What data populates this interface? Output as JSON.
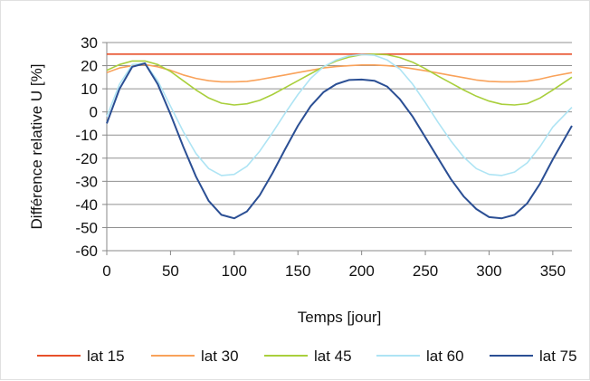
{
  "chart_data": {
    "type": "line",
    "title": "",
    "xlabel": "Temps [jour]",
    "ylabel": "Différence relative U [%]",
    "xlim": [
      0,
      365
    ],
    "ylim": [
      -60,
      30
    ],
    "xticks": [
      0,
      50,
      100,
      150,
      200,
      250,
      300,
      350
    ],
    "yticks": [
      30,
      20,
      10,
      0,
      -10,
      -20,
      -30,
      -40,
      -50,
      -60
    ],
    "grid": "horizontal",
    "legend_position": "bottom",
    "x": [
      0,
      10,
      20,
      30,
      40,
      50,
      60,
      70,
      80,
      90,
      100,
      110,
      120,
      130,
      140,
      150,
      160,
      170,
      180,
      190,
      200,
      210,
      220,
      230,
      240,
      250,
      260,
      270,
      280,
      290,
      300,
      310,
      320,
      330,
      340,
      350,
      365
    ],
    "series": [
      {
        "name": "lat 15",
        "color": "#e8502a",
        "values": [
          25,
          25,
          25,
          25,
          25,
          25,
          25,
          25,
          25,
          25,
          25,
          25,
          25,
          25,
          25,
          25,
          25,
          25,
          25,
          25,
          25,
          25,
          25,
          25,
          25,
          25,
          25,
          25,
          25,
          25,
          25,
          25,
          25,
          25,
          25,
          25,
          25
        ]
      },
      {
        "name": "lat 30",
        "color": "#f9a25a",
        "values": [
          17,
          19,
          20,
          20.5,
          19.5,
          18,
          16,
          14.5,
          13.5,
          13,
          13,
          13.2,
          14,
          15,
          16,
          17,
          18,
          19,
          19.6,
          20,
          20.3,
          20.3,
          20,
          19.5,
          18.7,
          17.8,
          16.8,
          15.8,
          14.8,
          13.8,
          13.2,
          13,
          13,
          13.3,
          14.2,
          15.5,
          17
        ]
      },
      {
        "name": "lat 45",
        "color": "#a9cf3c",
        "values": [
          18,
          20.5,
          22,
          22,
          20.5,
          17.5,
          13.5,
          9.5,
          6,
          3.8,
          3,
          3.5,
          5,
          7.5,
          10.5,
          13.5,
          16.5,
          19.5,
          22,
          23.7,
          24.7,
          25,
          24.7,
          23.5,
          21.5,
          18.7,
          15.5,
          12.5,
          9.5,
          6.8,
          4.7,
          3.3,
          3,
          3.6,
          6,
          9.5,
          15
        ]
      },
      {
        "name": "lat 60",
        "color": "#aee4f4",
        "values": [
          -2,
          12,
          20.5,
          21,
          13.5,
          2.5,
          -8.5,
          -18,
          -24.5,
          -27.5,
          -27,
          -23.5,
          -17,
          -9,
          -0.5,
          7.5,
          14.5,
          19.5,
          22.5,
          24.3,
          24.8,
          24.5,
          22.5,
          18.5,
          12,
          4,
          -4.5,
          -12.5,
          -19.5,
          -24.5,
          -27,
          -27.5,
          -26,
          -22,
          -15,
          -6.5,
          2
        ]
      },
      {
        "name": "lat 75",
        "color": "#2b4f94",
        "values": [
          -5,
          10,
          19.5,
          21,
          12,
          -1,
          -15,
          -28,
          -38.5,
          -44.5,
          -46,
          -43,
          -36,
          -26.5,
          -16,
          -6,
          2.5,
          8.5,
          12,
          13.8,
          14,
          13.5,
          11,
          5.5,
          -2,
          -11,
          -20,
          -29,
          -36.5,
          -42,
          -45.5,
          -46,
          -44.5,
          -39.5,
          -31,
          -20.5,
          -6
        ]
      }
    ]
  }
}
